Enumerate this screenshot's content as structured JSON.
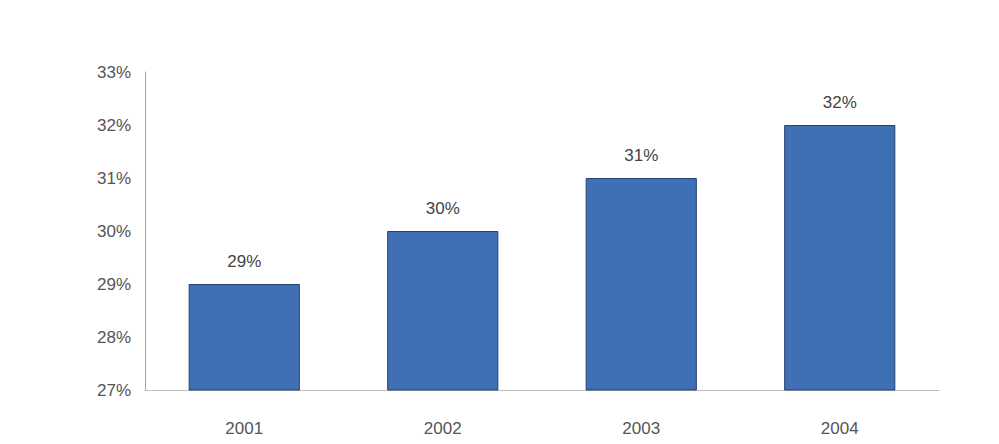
{
  "chart_data": {
    "type": "bar",
    "categories": [
      "2001",
      "2002",
      "2003",
      "2004"
    ],
    "values": [
      29,
      30,
      31,
      32
    ],
    "value_labels": [
      "29%",
      "30%",
      "31%",
      "32%"
    ],
    "color": "#3f6fb5",
    "ylim": [
      27,
      33
    ],
    "yticks": [
      {
        "value": 27,
        "label": "27%"
      },
      {
        "value": 28,
        "label": "28%"
      },
      {
        "value": 29,
        "label": "29%"
      },
      {
        "value": 30,
        "label": "30%"
      },
      {
        "value": 31,
        "label": "31%"
      },
      {
        "value": 32,
        "label": "32%"
      },
      {
        "value": 33,
        "label": "33%"
      }
    ],
    "grid": false,
    "data_labels": true
  }
}
